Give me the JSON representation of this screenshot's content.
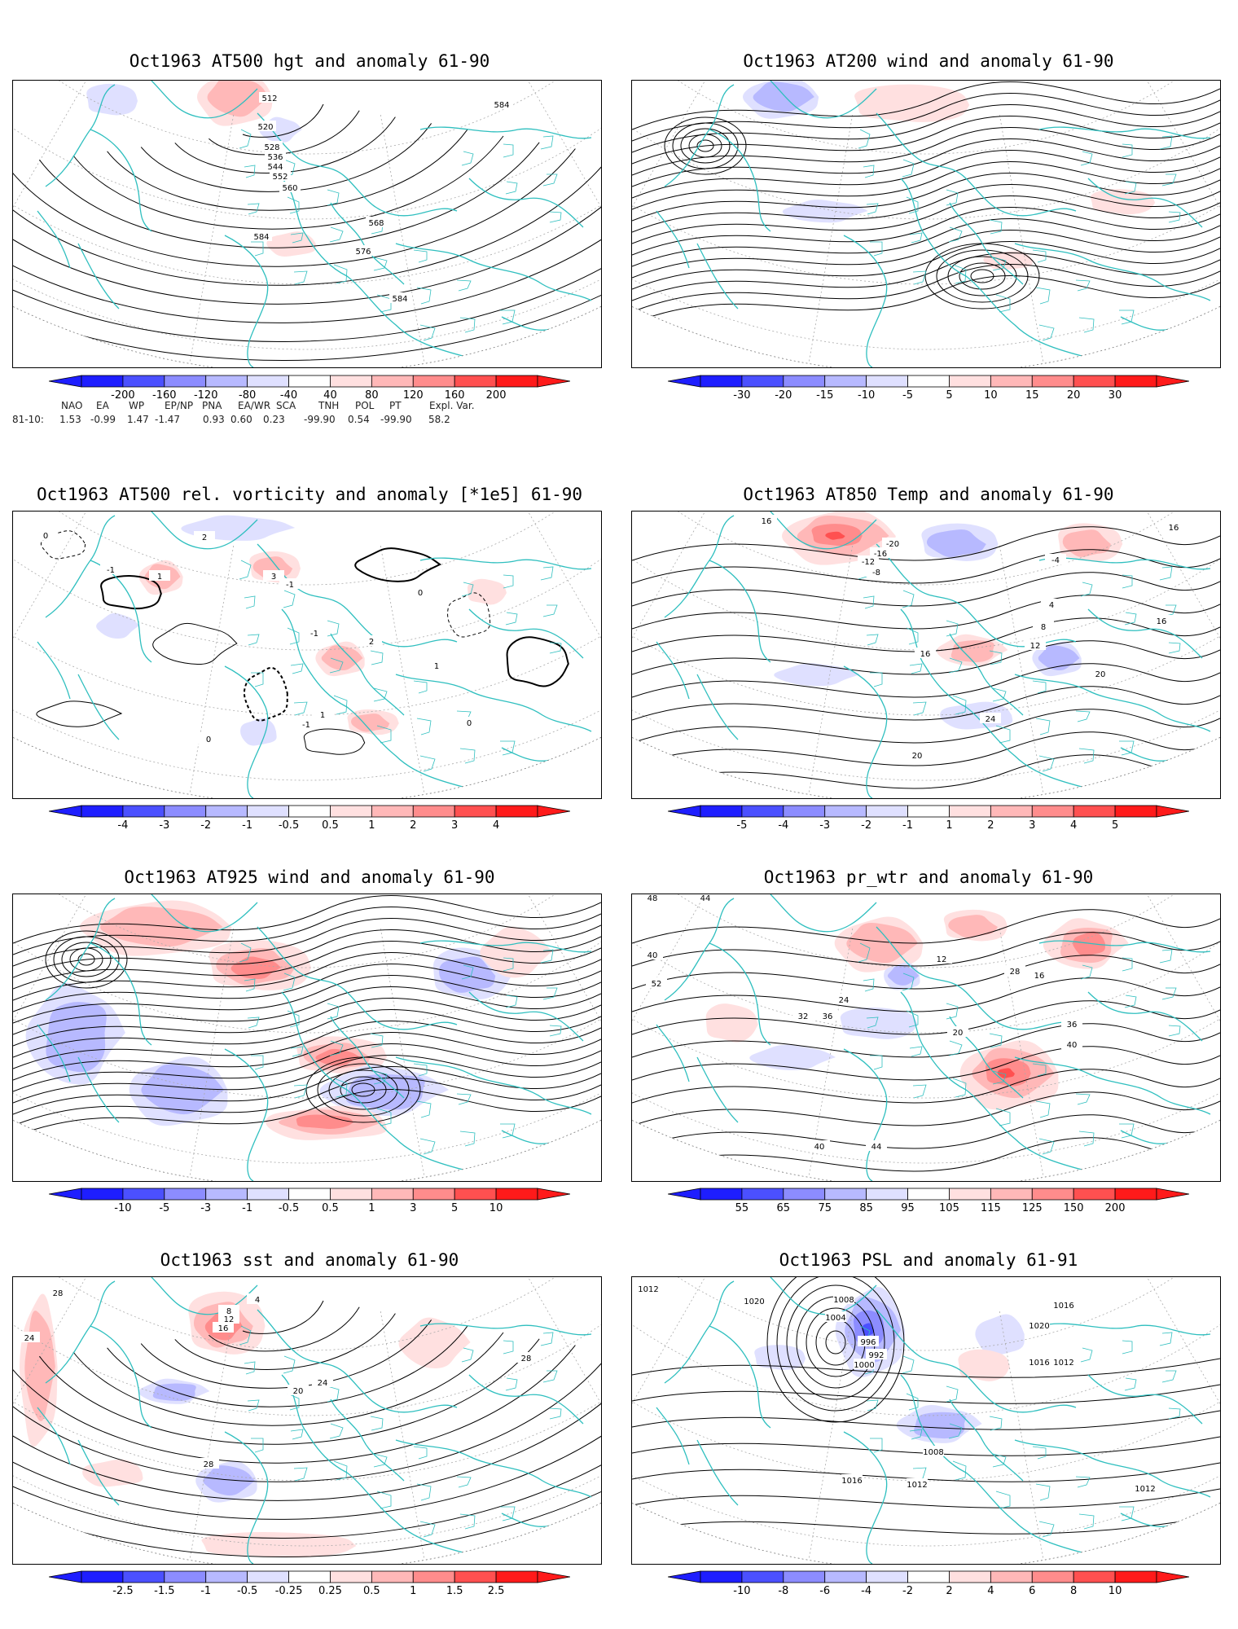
{
  "colors": {
    "land_outline": "#2fbfbf",
    "contour": "#000000",
    "graticule": "#aaaaaa",
    "neg": [
      "#1e1eff",
      "#4b50ff",
      "#8c8cff",
      "#b7b9ff",
      "#dfe0ff"
    ],
    "pos": [
      "#ffe0e0",
      "#ffb8b8",
      "#ff8c8c",
      "#ff5050",
      "#ff1a1a"
    ]
  },
  "panels": [
    {
      "id": "p1",
      "title": "Oct1963 AT500 hgt and anomaly 61-90",
      "colorbar": [
        "-200",
        "-160",
        "-120",
        "-80",
        "-40",
        "40",
        "80",
        "120",
        "160",
        "200"
      ],
      "contour_labels": [
        "512",
        "520",
        "528",
        "536",
        "544",
        "552",
        "560",
        "568",
        "576",
        "584",
        "584",
        "584"
      ]
    },
    {
      "id": "p2",
      "title": "Oct1963 AT200 wind and anomaly 61-90",
      "colorbar": [
        "-30",
        "-20",
        "-15",
        "-10",
        "-5",
        "5",
        "10",
        "15",
        "20",
        "30"
      ],
      "contour_labels": []
    },
    {
      "id": "p3",
      "title": "Oct1963 AT500 rel. vorticity and anomaly [*1e5] 61-90",
      "colorbar": [
        "-4",
        "-3",
        "-2",
        "-1",
        "-0.5",
        "0.5",
        "1",
        "2",
        "3",
        "4"
      ],
      "contour_labels": [
        "0",
        "-1",
        "1",
        "2",
        "3",
        "-1",
        "0",
        "1",
        "-1",
        "2",
        "0",
        "-1",
        "1",
        "0"
      ]
    },
    {
      "id": "p4",
      "title": "Oct1963 AT850 Temp and anomaly 61-90",
      "colorbar": [
        "-5",
        "-4",
        "-3",
        "-2",
        "-1",
        "1",
        "2",
        "3",
        "4",
        "5"
      ],
      "contour_labels": [
        "16",
        "-8",
        "-12",
        "-16",
        "-20",
        "-4",
        "4",
        "8",
        "12",
        "16",
        "16",
        "20",
        "24",
        "20",
        "16"
      ]
    },
    {
      "id": "p5",
      "title": "Oct1963 AT925 wind and anomaly 61-90",
      "colorbar": [
        "-10",
        "-5",
        "-3",
        "-1",
        "-0.5",
        "0.5",
        "1",
        "3",
        "5",
        "10"
      ],
      "contour_labels": []
    },
    {
      "id": "p6",
      "title": "Oct1963 pr_wtr and anomaly 61-90",
      "colorbar": [
        "55",
        "65",
        "75",
        "85",
        "95",
        "105",
        "115",
        "125",
        "150",
        "200"
      ],
      "contour_labels": [
        "48",
        "44",
        "40",
        "52",
        "36",
        "32",
        "24",
        "16",
        "12",
        "20",
        "28",
        "36",
        "40",
        "44",
        "40"
      ]
    },
    {
      "id": "p7",
      "title": "Oct1963 sst and anomaly 61-90",
      "colorbar": [
        "-2.5",
        "-1.5",
        "-1",
        "-0.5",
        "-0.25",
        "0.25",
        "0.5",
        "1",
        "1.5",
        "2.5"
      ],
      "contour_labels": [
        "28",
        "24",
        "16",
        "12",
        "8",
        "4",
        "20",
        "24",
        "28",
        "28"
      ]
    },
    {
      "id": "p8",
      "title": "Oct1963 PSL and anomaly 61-91",
      "colorbar": [
        "-10",
        "-8",
        "-6",
        "-4",
        "-2",
        "2",
        "4",
        "6",
        "8",
        "10"
      ],
      "contour_labels": [
        "1012",
        "1020",
        "1008",
        "1004",
        "1000",
        "996",
        "992",
        "1016",
        "1020",
        "1016",
        "1012",
        "1008",
        "1012",
        "1016",
        "1012"
      ]
    }
  ],
  "teleconnections": {
    "headers": [
      "NAO",
      "EA",
      "WP",
      "EP/NP",
      "PNA",
      "EA/WR",
      "SCA",
      "TNH",
      "POL",
      "PT",
      "Expl. Var."
    ],
    "row_label": "81-10:",
    "values": [
      "1.53",
      "-0.99",
      "1.47",
      "-1.47",
      "0.93",
      "0.60",
      "0.23",
      "-99.90",
      "0.54",
      "-99.90",
      "58.2"
    ]
  }
}
